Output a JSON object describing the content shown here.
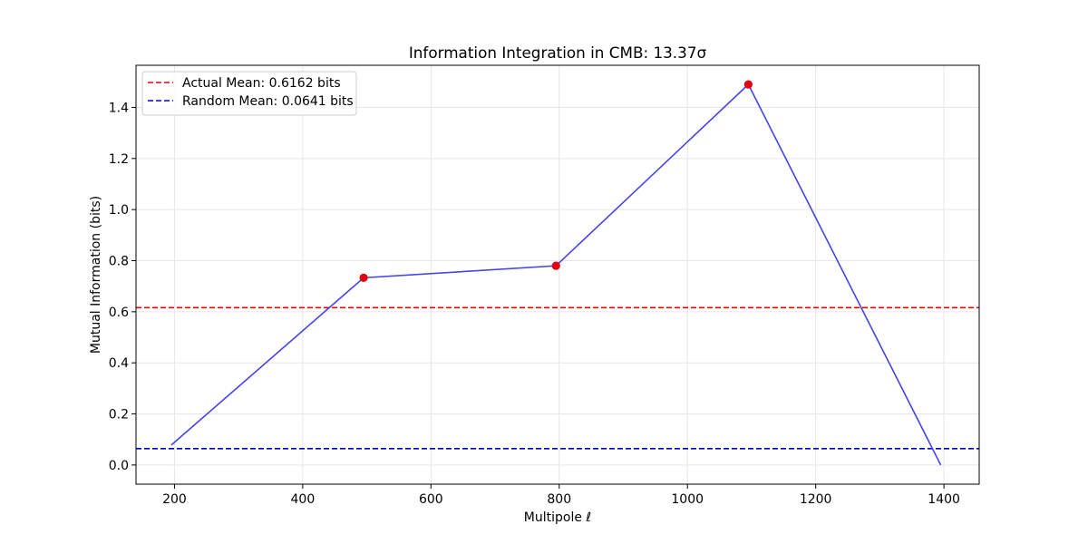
{
  "colors": {
    "series_line": "#4444ee",
    "marker": "#e0000f",
    "actual_mean": "#ee0000",
    "random_mean": "#0000cc",
    "grid": "#e6e6e6"
  },
  "chart_data": {
    "type": "line",
    "title": "Information Integration in CMB: 13.37σ",
    "xlabel": "Multipole ℓ",
    "ylabel": "Mutual Information (bits)",
    "xlim": [
      140,
      1455
    ],
    "ylim": [
      -0.075,
      1.565
    ],
    "xticks": [
      200,
      400,
      600,
      800,
      1000,
      1200,
      1400
    ],
    "xtick_labels": [
      "200",
      "400",
      "600",
      "800",
      "1000",
      "1200",
      "1400"
    ],
    "yticks": [
      0.0,
      0.2,
      0.4,
      0.6,
      0.8,
      1.0,
      1.2,
      1.4
    ],
    "ytick_labels": [
      "0.0",
      "0.2",
      "0.4",
      "0.6",
      "0.8",
      "1.0",
      "1.2",
      "1.4"
    ],
    "grid": true,
    "legend_position": "top-left",
    "series": [
      {
        "x": [
          195,
          495,
          795,
          1095,
          1395
        ],
        "y": [
          0.078,
          0.733,
          0.78,
          1.49,
          0.0
        ],
        "marker_indices": [
          1,
          2,
          3
        ]
      }
    ],
    "reference_lines": [
      {
        "name": "Actual Mean: 0.6162 bits",
        "y": 0.6162,
        "style": "dashed",
        "color_key": "actual_mean"
      },
      {
        "name": "Random Mean: 0.0641 bits",
        "y": 0.0641,
        "style": "dashed",
        "color_key": "random_mean"
      }
    ]
  }
}
